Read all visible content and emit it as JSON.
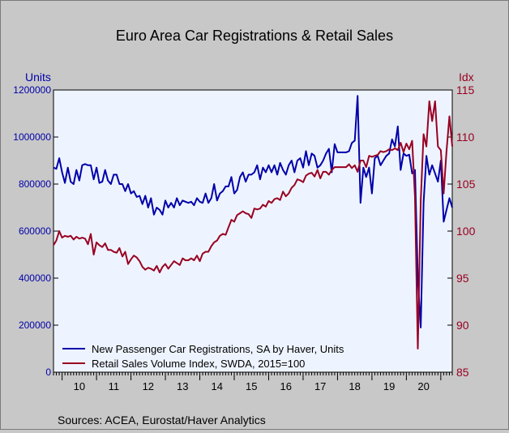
{
  "chart_data": {
    "type": "line",
    "title": "Euro Area Car Registrations & Retail Sales",
    "left_axis": {
      "label": "Units",
      "ylim": [
        0,
        1200000
      ],
      "ticks": [
        0,
        200000,
        400000,
        600000,
        800000,
        1000000,
        1200000
      ],
      "tick_labels": [
        "0",
        "200000",
        "400000",
        "600000",
        "800000",
        "1000000",
        "1200000"
      ]
    },
    "right_axis": {
      "label": "Idx",
      "ylim": [
        85,
        115
      ],
      "ticks": [
        85,
        90,
        95,
        100,
        105,
        110,
        115
      ],
      "tick_labels": [
        "85",
        "90",
        "95",
        "100",
        "105",
        "110",
        "115"
      ]
    },
    "x_axis": {
      "start": 2009.75,
      "end": 2021.333,
      "year_labels": [
        "10",
        "11",
        "12",
        "13",
        "14",
        "15",
        "16",
        "17",
        "18",
        "19",
        "20"
      ],
      "year_starts": [
        2010,
        2011,
        2012,
        2013,
        2014,
        2015,
        2016,
        2017,
        2018,
        2019,
        2020
      ]
    },
    "grid": false,
    "legend_placement": "bottom-left",
    "series": [
      {
        "name": "New Passenger Car Registrations, SA by Haver, Units",
        "axis": "left",
        "color": "#0000aa",
        "points": [
          [
            2009.75,
            870000
          ],
          [
            2009.833,
            865000
          ],
          [
            2009.917,
            910000
          ],
          [
            2010.0,
            850000
          ],
          [
            2010.083,
            805000
          ],
          [
            2010.167,
            870000
          ],
          [
            2010.25,
            810000
          ],
          [
            2010.333,
            800000
          ],
          [
            2010.417,
            860000
          ],
          [
            2010.5,
            815000
          ],
          [
            2010.583,
            880000
          ],
          [
            2010.667,
            885000
          ],
          [
            2010.75,
            880000
          ],
          [
            2010.833,
            880000
          ],
          [
            2010.917,
            820000
          ],
          [
            2011.0,
            870000
          ],
          [
            2011.083,
            805000
          ],
          [
            2011.167,
            810000
          ],
          [
            2011.25,
            860000
          ],
          [
            2011.333,
            815000
          ],
          [
            2011.417,
            800000
          ],
          [
            2011.5,
            840000
          ],
          [
            2011.583,
            840000
          ],
          [
            2011.667,
            800000
          ],
          [
            2011.75,
            800000
          ],
          [
            2011.833,
            770000
          ],
          [
            2011.917,
            800000
          ],
          [
            2012.0,
            760000
          ],
          [
            2012.083,
            770000
          ],
          [
            2012.167,
            745000
          ],
          [
            2012.25,
            750000
          ],
          [
            2012.333,
            715000
          ],
          [
            2012.417,
            750000
          ],
          [
            2012.5,
            700000
          ],
          [
            2012.583,
            740000
          ],
          [
            2012.667,
            670000
          ],
          [
            2012.75,
            700000
          ],
          [
            2012.833,
            690000
          ],
          [
            2012.917,
            670000
          ],
          [
            2013.0,
            730000
          ],
          [
            2013.083,
            700000
          ],
          [
            2013.167,
            720000
          ],
          [
            2013.25,
            700000
          ],
          [
            2013.333,
            740000
          ],
          [
            2013.417,
            710000
          ],
          [
            2013.5,
            730000
          ],
          [
            2013.583,
            725000
          ],
          [
            2013.667,
            720000
          ],
          [
            2013.75,
            725000
          ],
          [
            2013.833,
            710000
          ],
          [
            2013.917,
            740000
          ],
          [
            2014.0,
            725000
          ],
          [
            2014.083,
            720000
          ],
          [
            2014.167,
            760000
          ],
          [
            2014.25,
            720000
          ],
          [
            2014.333,
            740000
          ],
          [
            2014.417,
            800000
          ],
          [
            2014.5,
            730000
          ],
          [
            2014.583,
            760000
          ],
          [
            2014.667,
            770000
          ],
          [
            2014.75,
            790000
          ],
          [
            2014.833,
            790000
          ],
          [
            2014.917,
            830000
          ],
          [
            2015.0,
            760000
          ],
          [
            2015.083,
            775000
          ],
          [
            2015.167,
            830000
          ],
          [
            2015.25,
            850000
          ],
          [
            2015.333,
            810000
          ],
          [
            2015.417,
            840000
          ],
          [
            2015.5,
            840000
          ],
          [
            2015.583,
            850000
          ],
          [
            2015.667,
            880000
          ],
          [
            2015.75,
            820000
          ],
          [
            2015.833,
            870000
          ],
          [
            2015.917,
            850000
          ],
          [
            2016.0,
            880000
          ],
          [
            2016.083,
            850000
          ],
          [
            2016.167,
            880000
          ],
          [
            2016.25,
            840000
          ],
          [
            2016.333,
            890000
          ],
          [
            2016.417,
            860000
          ],
          [
            2016.5,
            840000
          ],
          [
            2016.583,
            880000
          ],
          [
            2016.667,
            900000
          ],
          [
            2016.75,
            850000
          ],
          [
            2016.833,
            900000
          ],
          [
            2016.917,
            910000
          ],
          [
            2017.0,
            870000
          ],
          [
            2017.083,
            940000
          ],
          [
            2017.167,
            880000
          ],
          [
            2017.25,
            930000
          ],
          [
            2017.333,
            920000
          ],
          [
            2017.417,
            870000
          ],
          [
            2017.5,
            880000
          ],
          [
            2017.583,
            900000
          ],
          [
            2017.667,
            930000
          ],
          [
            2017.75,
            950000
          ],
          [
            2017.833,
            850000
          ],
          [
            2017.917,
            970000
          ],
          [
            2018.0,
            935000
          ],
          [
            2018.083,
            935000
          ],
          [
            2018.167,
            935000
          ],
          [
            2018.25,
            935000
          ],
          [
            2018.333,
            940000
          ],
          [
            2018.417,
            975000
          ],
          [
            2018.5,
            985000
          ],
          [
            2018.583,
            1175000
          ],
          [
            2018.667,
            720000
          ],
          [
            2018.75,
            870000
          ],
          [
            2018.833,
            830000
          ],
          [
            2018.917,
            870000
          ],
          [
            2019.0,
            760000
          ],
          [
            2019.083,
            910000
          ],
          [
            2019.167,
            920000
          ],
          [
            2019.25,
            880000
          ],
          [
            2019.333,
            900000
          ],
          [
            2019.417,
            920000
          ],
          [
            2019.5,
            930000
          ],
          [
            2019.583,
            990000
          ],
          [
            2019.667,
            960000
          ],
          [
            2019.75,
            1045000
          ],
          [
            2019.833,
            860000
          ],
          [
            2019.917,
            930000
          ],
          [
            2020.0,
            920000
          ],
          [
            2020.083,
            925000
          ],
          [
            2020.167,
            845000
          ],
          [
            2020.25,
            860000
          ],
          [
            2020.333,
            400000
          ],
          [
            2020.417,
            190000
          ],
          [
            2020.5,
            720000
          ],
          [
            2020.583,
            920000
          ],
          [
            2020.667,
            840000
          ],
          [
            2020.75,
            880000
          ],
          [
            2020.833,
            845000
          ],
          [
            2020.917,
            810000
          ],
          [
            2021.0,
            900000
          ],
          [
            2021.083,
            640000
          ],
          [
            2021.167,
            690000
          ],
          [
            2021.25,
            740000
          ],
          [
            2021.333,
            700000
          ]
        ]
      },
      {
        "name": "Retail Sales Volume Index, SWDA, 2015=100",
        "axis": "right",
        "color": "#990022",
        "points": [
          [
            2009.75,
            98.5
          ],
          [
            2009.833,
            99.0
          ],
          [
            2009.917,
            100.0
          ],
          [
            2010.0,
            99.3
          ],
          [
            2010.083,
            99.5
          ],
          [
            2010.167,
            99.4
          ],
          [
            2010.25,
            99.5
          ],
          [
            2010.333,
            99.1
          ],
          [
            2010.417,
            99.4
          ],
          [
            2010.5,
            99.2
          ],
          [
            2010.583,
            99.3
          ],
          [
            2010.667,
            99.2
          ],
          [
            2010.75,
            98.6
          ],
          [
            2010.833,
            99.7
          ],
          [
            2010.917,
            97.5
          ],
          [
            2011.0,
            98.8
          ],
          [
            2011.083,
            98.5
          ],
          [
            2011.167,
            98.3
          ],
          [
            2011.25,
            98.7
          ],
          [
            2011.333,
            98.0
          ],
          [
            2011.417,
            98.0
          ],
          [
            2011.5,
            97.8
          ],
          [
            2011.583,
            97.7
          ],
          [
            2011.667,
            98.2
          ],
          [
            2011.75,
            97.3
          ],
          [
            2011.833,
            97.8
          ],
          [
            2011.917,
            96.5
          ],
          [
            2012.0,
            97.0
          ],
          [
            2012.083,
            97.4
          ],
          [
            2012.167,
            97.2
          ],
          [
            2012.25,
            96.8
          ],
          [
            2012.333,
            96.2
          ],
          [
            2012.417,
            95.9
          ],
          [
            2012.5,
            96.1
          ],
          [
            2012.583,
            96.0
          ],
          [
            2012.667,
            95.8
          ],
          [
            2012.75,
            96.3
          ],
          [
            2012.833,
            95.6
          ],
          [
            2012.917,
            96.2
          ],
          [
            2013.0,
            96.5
          ],
          [
            2013.083,
            96.0
          ],
          [
            2013.167,
            96.4
          ],
          [
            2013.25,
            96.8
          ],
          [
            2013.333,
            96.6
          ],
          [
            2013.417,
            96.4
          ],
          [
            2013.5,
            97.1
          ],
          [
            2013.583,
            96.9
          ],
          [
            2013.667,
            96.9
          ],
          [
            2013.75,
            97.1
          ],
          [
            2013.833,
            96.9
          ],
          [
            2013.917,
            97.4
          ],
          [
            2014.0,
            96.8
          ],
          [
            2014.083,
            97.6
          ],
          [
            2014.167,
            97.8
          ],
          [
            2014.25,
            97.8
          ],
          [
            2014.333,
            98.4
          ],
          [
            2014.417,
            98.8
          ],
          [
            2014.5,
            99.0
          ],
          [
            2014.583,
            99.5
          ],
          [
            2014.667,
            99.7
          ],
          [
            2014.75,
            99.6
          ],
          [
            2014.833,
            100.4
          ],
          [
            2014.917,
            101.2
          ],
          [
            2015.0,
            101.0
          ],
          [
            2015.083,
            101.7
          ],
          [
            2015.167,
            101.9
          ],
          [
            2015.25,
            102.1
          ],
          [
            2015.333,
            101.9
          ],
          [
            2015.417,
            101.8
          ],
          [
            2015.5,
            101.4
          ],
          [
            2015.583,
            102.4
          ],
          [
            2015.667,
            102.3
          ],
          [
            2015.75,
            102.4
          ],
          [
            2015.833,
            102.8
          ],
          [
            2015.917,
            102.6
          ],
          [
            2016.0,
            103.2
          ],
          [
            2016.083,
            103.0
          ],
          [
            2016.167,
            103.4
          ],
          [
            2016.25,
            103.5
          ],
          [
            2016.333,
            103.3
          ],
          [
            2016.417,
            104.2
          ],
          [
            2016.5,
            103.7
          ],
          [
            2016.583,
            104.0
          ],
          [
            2016.667,
            104.6
          ],
          [
            2016.75,
            104.9
          ],
          [
            2016.833,
            105.5
          ],
          [
            2016.917,
            105.4
          ],
          [
            2017.0,
            105.2
          ],
          [
            2017.083,
            105.9
          ],
          [
            2017.167,
            106.1
          ],
          [
            2017.25,
            106.2
          ],
          [
            2017.333,
            105.8
          ],
          [
            2017.417,
            106.5
          ],
          [
            2017.5,
            105.6
          ],
          [
            2017.583,
            106.3
          ],
          [
            2017.667,
            106.3
          ],
          [
            2017.75,
            106.0
          ],
          [
            2017.833,
            106.5
          ],
          [
            2017.917,
            106.8
          ],
          [
            2018.0,
            106.8
          ],
          [
            2018.083,
            106.8
          ],
          [
            2018.167,
            106.8
          ],
          [
            2018.25,
            106.8
          ],
          [
            2018.333,
            107.1
          ],
          [
            2018.417,
            106.7
          ],
          [
            2018.5,
            107.0
          ],
          [
            2018.583,
            106.3
          ],
          [
            2018.667,
            107.5
          ],
          [
            2018.75,
            107.5
          ],
          [
            2018.833,
            106.8
          ],
          [
            2018.917,
            108.0
          ],
          [
            2019.0,
            107.9
          ],
          [
            2019.083,
            108.0
          ],
          [
            2019.167,
            108.1
          ],
          [
            2019.25,
            108.5
          ],
          [
            2019.333,
            108.4
          ],
          [
            2019.417,
            108.5
          ],
          [
            2019.5,
            108.7
          ],
          [
            2019.583,
            108.6
          ],
          [
            2019.667,
            108.8
          ],
          [
            2019.75,
            108.6
          ],
          [
            2019.833,
            109.4
          ],
          [
            2019.917,
            108.4
          ],
          [
            2020.0,
            109.3
          ],
          [
            2020.083,
            108.7
          ],
          [
            2020.167,
            109.6
          ],
          [
            2020.25,
            103.6
          ],
          [
            2020.333,
            87.5
          ],
          [
            2020.417,
            103.2
          ],
          [
            2020.5,
            110.3
          ],
          [
            2020.583,
            109.0
          ],
          [
            2020.667,
            113.8
          ],
          [
            2020.75,
            111.7
          ],
          [
            2020.833,
            113.8
          ],
          [
            2020.917,
            109.0
          ],
          [
            2021.0,
            108.6
          ],
          [
            2021.083,
            104.0
          ],
          [
            2021.167,
            108.5
          ],
          [
            2021.25,
            112.2
          ],
          [
            2021.333,
            109.0
          ]
        ]
      }
    ]
  },
  "source_note": "Sources:   ACEA, Eurostat/Haver Analytics"
}
